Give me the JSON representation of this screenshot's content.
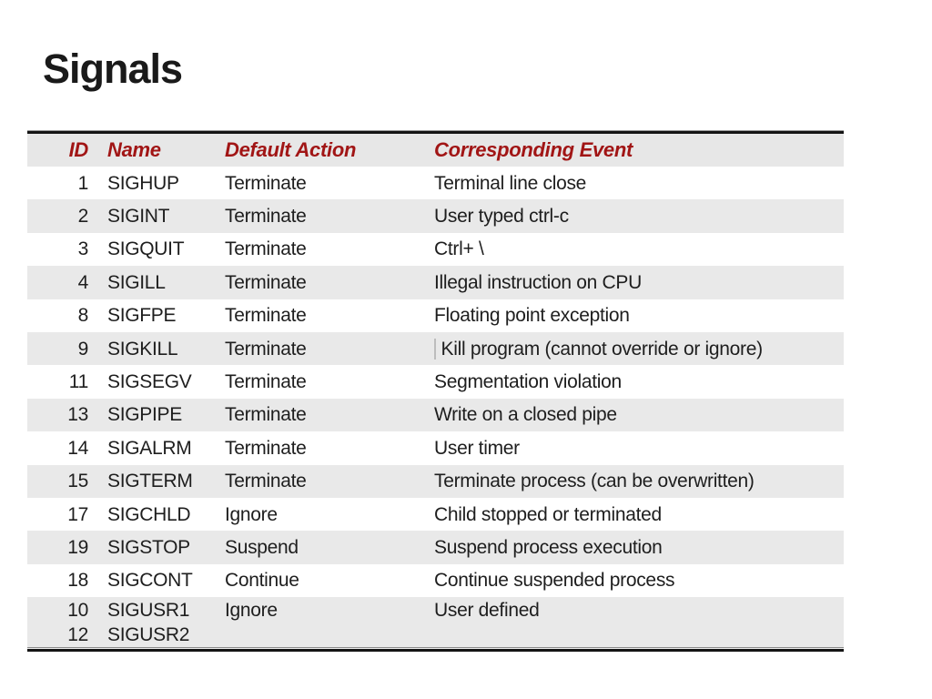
{
  "slide": {
    "title": "Signals"
  },
  "colors": {
    "header_text": "#a11515",
    "stripe": "#e9e9e9",
    "border": "#141414",
    "body_text": "#1e1e1e"
  },
  "table": {
    "columns": [
      "ID",
      "Name",
      "Default Action",
      "Corresponding Event"
    ],
    "rows": [
      {
        "id": "1",
        "name": "SIGHUP",
        "action": "Terminate",
        "event": "Terminal line close"
      },
      {
        "id": "2",
        "name": "SIGINT",
        "action": "Terminate",
        "event": "User typed ctrl-c"
      },
      {
        "id": "3",
        "name": "SIGQUIT",
        "action": "Terminate",
        "event": "Ctrl+ \\"
      },
      {
        "id": "4",
        "name": "SIGILL",
        "action": "Terminate",
        "event": "Illegal instruction on CPU"
      },
      {
        "id": "8",
        "name": "SIGFPE",
        "action": "Terminate",
        "event": "Floating point exception"
      },
      {
        "id": "9",
        "name": "SIGKILL",
        "action": "Terminate",
        "event": "Kill program (cannot override or ignore)",
        "cursor_artifact": true
      },
      {
        "id": "11",
        "name": "SIGSEGV",
        "action": "Terminate",
        "event": "Segmentation violation"
      },
      {
        "id": "13",
        "name": "SIGPIPE",
        "action": "Terminate",
        "event": "Write on a closed pipe"
      },
      {
        "id": "14",
        "name": "SIGALRM",
        "action": "Terminate",
        "event": "User timer"
      },
      {
        "id": "15",
        "name": "SIGTERM",
        "action": "Terminate",
        "event": "Terminate process (can be overwritten)"
      },
      {
        "id": "17",
        "name": "SIGCHLD",
        "action": "Ignore",
        "event": "Child stopped or terminated"
      },
      {
        "id": "19",
        "name": "SIGSTOP",
        "action": "Suspend",
        "event": "Suspend process execution"
      },
      {
        "id": "18",
        "name": "SIGCONT",
        "action": "Continue",
        "event": "Continue suspended process"
      },
      {
        "id": "10",
        "id2": "12",
        "name": "SIGUSR1",
        "name2": "SIGUSR2",
        "action": "Ignore",
        "event": "User defined"
      }
    ]
  }
}
